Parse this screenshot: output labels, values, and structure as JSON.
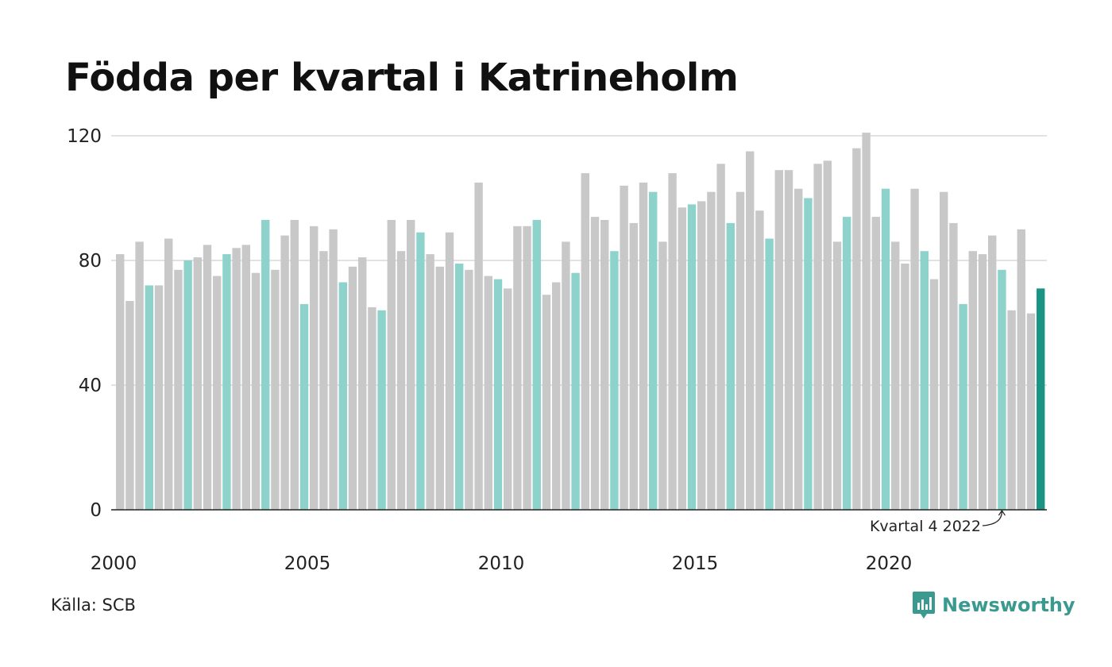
{
  "title": "Födda per kvartal i Katrineholm",
  "source": "Källa: SCB",
  "brand": {
    "name": "Newsworthy",
    "icon": "newsworthy-logo-icon"
  },
  "colors": {
    "gray": "#c8c8c8",
    "q4": "#8dd3cc",
    "latest": "#1a9485",
    "accent": "#3a9a8f"
  },
  "annotation": {
    "label": "Kvartal 4 2022"
  },
  "chart_data": {
    "type": "bar",
    "title": "Födda per kvartal i Katrineholm",
    "xlabel": "",
    "ylabel": "",
    "ylim": [
      0,
      120
    ],
    "yticks": [
      0,
      40,
      80,
      120
    ],
    "xticks": [
      "2000",
      "2005",
      "2010",
      "2015",
      "2020"
    ],
    "grid": true,
    "start_year": 2000,
    "highlight": "Kvartal 4 of each year highlighted; latest quarter in dark teal",
    "series": [
      {
        "name": "Födda",
        "values": [
          82,
          67,
          86,
          72,
          72,
          87,
          77,
          80,
          81,
          85,
          75,
          82,
          84,
          85,
          76,
          93,
          77,
          88,
          93,
          66,
          91,
          83,
          90,
          73,
          78,
          81,
          65,
          64,
          93,
          83,
          93,
          89,
          82,
          78,
          89,
          79,
          77,
          105,
          75,
          74,
          71,
          91,
          91,
          93,
          69,
          73,
          86,
          76,
          108,
          94,
          93,
          83,
          104,
          92,
          105,
          102,
          86,
          108,
          97,
          98,
          99,
          102,
          111,
          92,
          102,
          115,
          96,
          87,
          109,
          109,
          103,
          100,
          111,
          112,
          86,
          94,
          116,
          121,
          94,
          103,
          86,
          79,
          103,
          83,
          74,
          102,
          92,
          66,
          83,
          82,
          88,
          77,
          64,
          90,
          63,
          71
        ]
      }
    ]
  }
}
